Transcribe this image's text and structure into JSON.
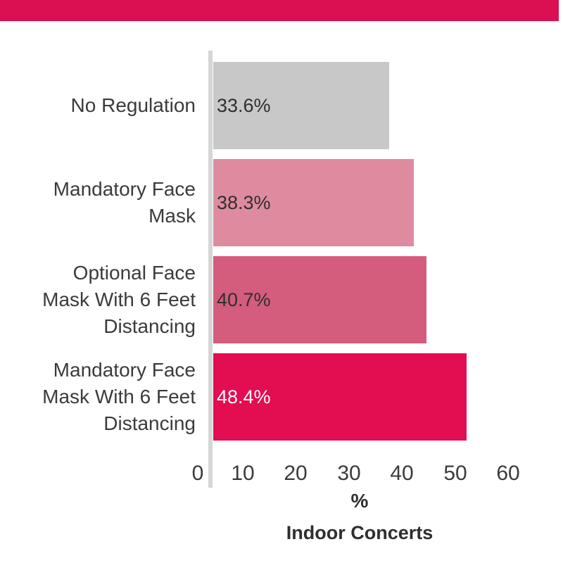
{
  "page": {
    "background_color": "#ffffff",
    "top_accent_bar_color": "#db1052",
    "axis_line_color": "#d6d6d6",
    "text_color": "#3b3b3b"
  },
  "chart_data": {
    "type": "bar",
    "orientation": "horizontal",
    "title": "",
    "xlabel": "%",
    "xlabel_sub": "Indoor Concerts",
    "categories": [
      "No Regulation",
      "Mandatory Face Mask",
      "Optional Face Mask With 6 Feet Distancing",
      "Mandatory Face Mask With 6 Feet Distancing"
    ],
    "category_lines": [
      [
        "No Regulation"
      ],
      [
        "Mandatory Face",
        "Mask"
      ],
      [
        "Optional Face",
        "Mask With 6 Feet",
        "Distancing"
      ],
      [
        "Mandatory Face",
        "Mask With 6 Feet",
        "Distancing"
      ]
    ],
    "values": [
      33.6,
      38.3,
      40.7,
      48.4
    ],
    "value_labels": [
      "33.6%",
      "38.3%",
      "40.7%",
      "48.4%"
    ],
    "bar_colors": [
      "#c8c8c8",
      "#de8ba0",
      "#d45c7c",
      "#e30d52"
    ],
    "value_label_colors": [
      "#2f2f2f",
      "#2f2f2f",
      "#2f2f2f",
      "#ffffff"
    ],
    "x_ticks": [
      "0",
      "10",
      "20",
      "30",
      "40",
      "50",
      "60"
    ],
    "xlim": [
      0,
      60
    ],
    "grid": false,
    "legend": false
  }
}
